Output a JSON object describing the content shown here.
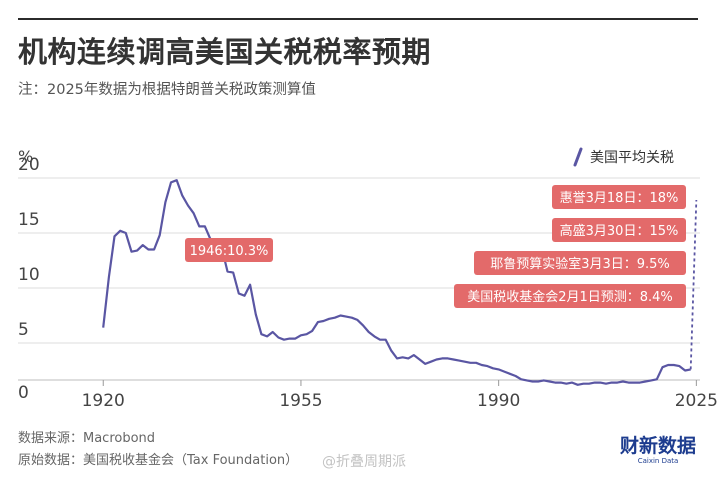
{
  "header": {
    "title": "机构连续调高美国关税税率预期",
    "subtitle": "注：2025年数据为根据特朗普关税政策测算值"
  },
  "chart_data": {
    "type": "line",
    "yunit": "%",
    "xlim": [
      1915,
      2026
    ],
    "ylim": [
      0,
      21
    ],
    "xticks": [
      1920,
      1955,
      1990,
      2025
    ],
    "yticks": [
      0,
      5,
      10,
      15,
      20
    ],
    "ytick_labels": [
      "0",
      "5",
      "10",
      "15",
      "20"
    ],
    "grid": true,
    "legend_position": "top-right",
    "series": [
      {
        "name": "美国平均关税",
        "color": "#5a56a3",
        "x": [
          1920,
          1921,
          1922,
          1923,
          1924,
          1925,
          1926,
          1927,
          1928,
          1929,
          1930,
          1931,
          1932,
          1933,
          1934,
          1935,
          1936,
          1937,
          1938,
          1939,
          1940,
          1941,
          1942,
          1943,
          1944,
          1945,
          1946,
          1947,
          1948,
          1949,
          1950,
          1951,
          1952,
          1953,
          1954,
          1955,
          1956,
          1957,
          1958,
          1959,
          1960,
          1961,
          1962,
          1963,
          1964,
          1965,
          1966,
          1967,
          1968,
          1969,
          1970,
          1971,
          1972,
          1973,
          1974,
          1975,
          1976,
          1977,
          1978,
          1979,
          1980,
          1981,
          1982,
          1983,
          1984,
          1985,
          1986,
          1987,
          1988,
          1989,
          1990,
          1991,
          1992,
          1993,
          1994,
          1995,
          1996,
          1997,
          1998,
          1999,
          2000,
          2001,
          2002,
          2003,
          2004,
          2005,
          2006,
          2007,
          2008,
          2009,
          2010,
          2011,
          2012,
          2013,
          2014,
          2015,
          2016,
          2017,
          2018,
          2019,
          2020,
          2021,
          2022,
          2023,
          2024
        ],
        "y": [
          6.4,
          11.0,
          14.7,
          15.2,
          15.0,
          13.3,
          13.4,
          13.9,
          13.5,
          13.5,
          14.8,
          17.8,
          19.6,
          19.8,
          18.4,
          17.5,
          16.8,
          15.6,
          15.6,
          14.4,
          12.5,
          13.6,
          11.5,
          11.4,
          9.5,
          9.3,
          10.3,
          7.6,
          5.8,
          5.6,
          6.0,
          5.5,
          5.3,
          5.4,
          5.4,
          5.7,
          5.8,
          6.1,
          6.9,
          7.0,
          7.2,
          7.3,
          7.5,
          7.4,
          7.3,
          7.1,
          6.6,
          6.0,
          5.6,
          5.3,
          5.3,
          4.3,
          3.6,
          3.7,
          3.6,
          3.9,
          3.5,
          3.1,
          3.3,
          3.5,
          3.6,
          3.6,
          3.5,
          3.4,
          3.3,
          3.2,
          3.2,
          3.0,
          2.9,
          2.7,
          2.6,
          2.4,
          2.2,
          2.0,
          1.7,
          1.6,
          1.5,
          1.5,
          1.6,
          1.5,
          1.4,
          1.4,
          1.3,
          1.4,
          1.2,
          1.3,
          1.3,
          1.4,
          1.4,
          1.3,
          1.4,
          1.4,
          1.5,
          1.4,
          1.4,
          1.4,
          1.5,
          1.6,
          1.7,
          2.8,
          3.0,
          3.0,
          2.9,
          2.5,
          2.6
        ]
      }
    ],
    "projection": {
      "x": [
        2024,
        2025
      ],
      "y": [
        2.6,
        18
      ],
      "style": "dashed"
    },
    "annotations": [
      {
        "text": "1946:10.3%",
        "x": 1946,
        "y": 10.3
      },
      {
        "text": "惠誉3月18日：18%",
        "x": 2025,
        "y": 18
      },
      {
        "text": "高盛3月30日：15%",
        "x": 2025,
        "y": 15
      },
      {
        "text": "耶鲁预算实验室3月3日：9.5%",
        "x": 2025,
        "y": 9.5
      },
      {
        "text": "美国税收基金会2月1日预测：8.4%",
        "x": 2025,
        "y": 8.4
      }
    ]
  },
  "footer": {
    "source": "数据来源：Macrobond",
    "origin": "原始数据：美国税收基金会（Tax Foundation）",
    "logo_text": "财新数据",
    "logo_subtext": "Caixin Data",
    "watermark": "@折叠周期派"
  },
  "colors": {
    "line": "#5a56a3",
    "label_bg": "#e36a6a",
    "grid": "#dedede"
  }
}
